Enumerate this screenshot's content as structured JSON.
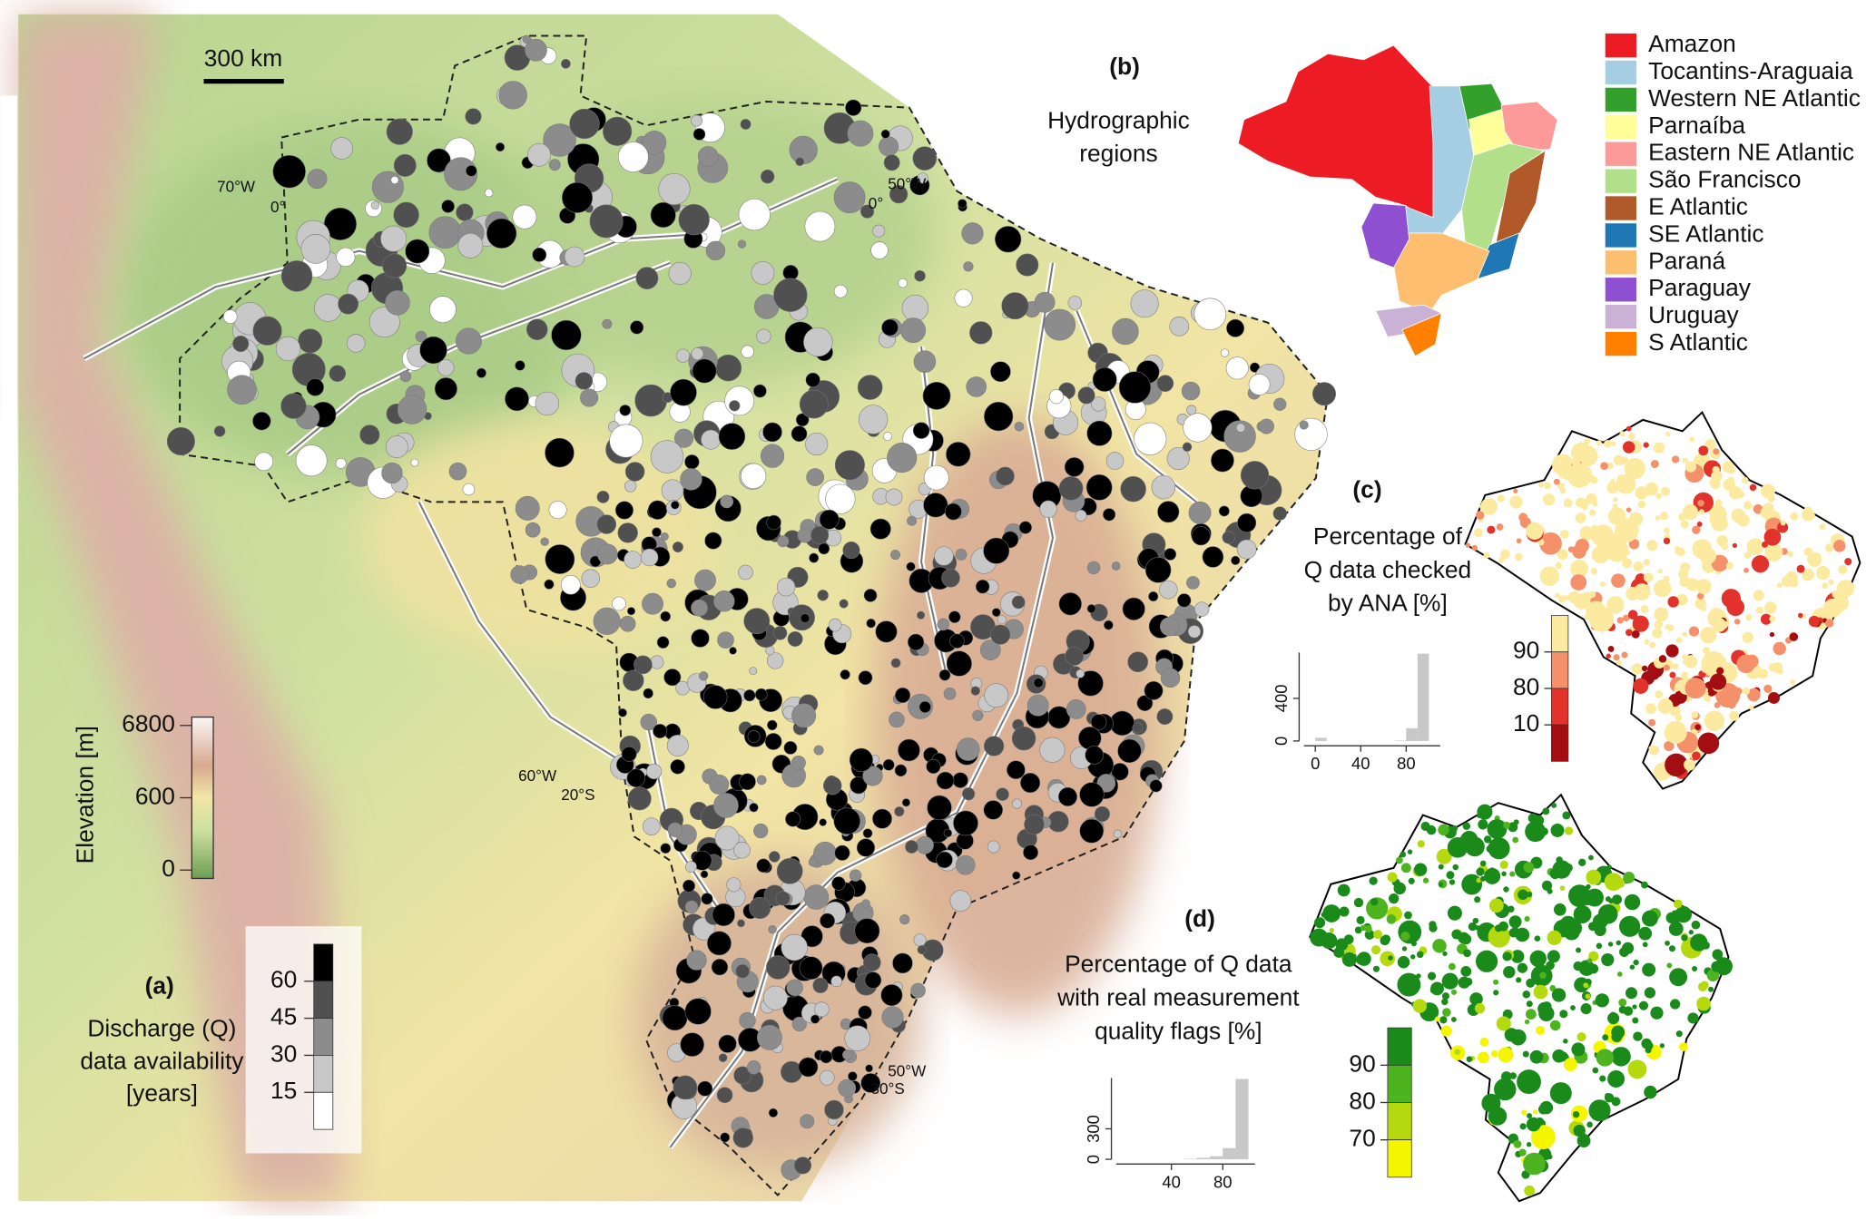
{
  "panel_a": {
    "label": "(a)",
    "scale_bar": "300 km",
    "coordinates": [
      "70°W",
      "0°",
      "50°W",
      "0°",
      "60°W",
      "20°S",
      "50°W",
      "30°S"
    ],
    "elevation_legend": {
      "title": "Elevation [m]",
      "ticks": [
        6800,
        600,
        0
      ]
    },
    "discharge_legend": {
      "title_lines": [
        "Discharge (Q)",
        "data availability",
        "[years]"
      ],
      "ticks": [
        60,
        45,
        30,
        15
      ]
    }
  },
  "panel_b": {
    "label": "(b)",
    "title_lines": [
      "Hydrographic",
      "regions"
    ],
    "regions": [
      {
        "name": "Amazon",
        "color": "#ed1c24"
      },
      {
        "name": "Tocantins-Araguaia",
        "color": "#a6cee3"
      },
      {
        "name": "Western NE Atlantic",
        "color": "#33a02c"
      },
      {
        "name": "Parnaíba",
        "color": "#ffff99"
      },
      {
        "name": "Eastern NE Atlantic",
        "color": "#fb9a99"
      },
      {
        "name": "São Francisco",
        "color": "#b2df8a"
      },
      {
        "name": "E Atlantic",
        "color": "#b15928"
      },
      {
        "name": "SE Atlantic",
        "color": "#1f78b4"
      },
      {
        "name": "Paraná",
        "color": "#fdbf6f"
      },
      {
        "name": "Paraguay",
        "color": "#8e4fd1"
      },
      {
        "name": "Uruguay",
        "color": "#cab2d6"
      },
      {
        "name": "S Atlantic",
        "color": "#ff7f00"
      }
    ]
  },
  "panel_c": {
    "label": "(c)",
    "title_lines": [
      "Percentage of",
      "Q data checked",
      "by ANA [%]"
    ],
    "histogram": {
      "bins": [
        0,
        10,
        20,
        30,
        40,
        50,
        60,
        70,
        80,
        90,
        100
      ],
      "counts": [
        30,
        0,
        0,
        0,
        0,
        0,
        0,
        5,
        120,
        820
      ],
      "xlim": [
        -10,
        110
      ],
      "xticks": [
        0,
        40,
        80
      ],
      "ylim": [
        0,
        830
      ],
      "yticks": [
        0,
        400
      ]
    },
    "color_legend": {
      "ticks": [
        90,
        80,
        10
      ],
      "colors": [
        "#fbeaa0",
        "#f4906a",
        "#e2322c",
        "#a30e13"
      ]
    }
  },
  "panel_d": {
    "label": "(d)",
    "title_lines": [
      "Percentage of Q data",
      "with real measurement",
      "quality flags [%]"
    ],
    "histogram": {
      "bins": [
        0,
        10,
        20,
        30,
        40,
        50,
        60,
        70,
        80,
        90,
        100
      ],
      "counts": [
        0,
        0,
        0,
        0,
        0,
        5,
        15,
        30,
        110,
        790
      ],
      "xlim": [
        -3,
        105
      ],
      "xticks": [
        40,
        80
      ],
      "ylim": [
        0,
        800
      ],
      "yticks": [
        0,
        300
      ]
    },
    "color_legend": {
      "ticks": [
        90,
        80,
        70
      ],
      "colors": [
        "#1a8a1a",
        "#4db31e",
        "#b5d90f",
        "#f5f500"
      ]
    }
  }
}
